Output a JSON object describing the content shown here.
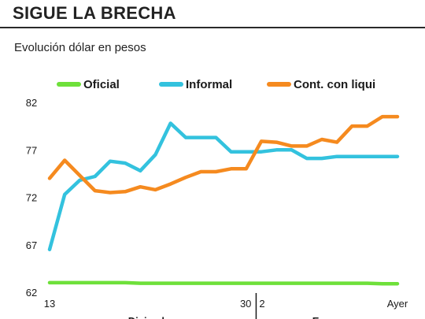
{
  "header": {
    "title": "SIGUE LA BRECHA",
    "subtitle": "Evolución dólar en pesos"
  },
  "chart_data": {
    "type": "line",
    "title": "SIGUE LA BRECHA",
    "subtitle": "Evolución dólar en pesos",
    "xlabel": "",
    "ylabel": "",
    "ylim": [
      62,
      82
    ],
    "yticks": [
      62,
      67,
      72,
      77,
      82
    ],
    "x_tick_labels": [
      {
        "index": 0,
        "label": "13"
      },
      {
        "index": 13,
        "label": "30"
      },
      {
        "index": 14,
        "label": "2"
      },
      {
        "index": 23,
        "label": "Ayer"
      }
    ],
    "month_labels": [
      "Diciembre",
      "Enero"
    ],
    "month_divider_after_index": 13,
    "legend_position": "top",
    "grid": false,
    "series": [
      {
        "name": "Oficial",
        "color": "#6ee03a",
        "values": [
          63.0,
          63.0,
          63.0,
          63.0,
          63.0,
          63.0,
          62.95,
          62.95,
          62.95,
          62.95,
          62.95,
          62.95,
          62.95,
          62.95,
          62.95,
          62.95,
          62.95,
          62.95,
          62.95,
          62.95,
          62.95,
          62.95,
          62.9,
          62.9
        ]
      },
      {
        "name": "Informal",
        "color": "#33c2de",
        "values": [
          66.5,
          72.3,
          73.8,
          74.2,
          75.8,
          75.6,
          74.8,
          76.5,
          79.8,
          78.3,
          78.3,
          78.3,
          76.8,
          76.8,
          76.8,
          77.0,
          77.0,
          76.1,
          76.1,
          76.3,
          76.3,
          76.3,
          76.3,
          76.3
        ]
      },
      {
        "name": "Cont. con liqui",
        "color": "#f58a1f",
        "values": [
          74.0,
          75.9,
          74.3,
          72.7,
          72.5,
          72.6,
          73.1,
          72.8,
          73.4,
          74.1,
          74.7,
          74.7,
          75.0,
          75.0,
          77.9,
          77.8,
          77.4,
          77.4,
          78.1,
          77.8,
          79.5,
          79.5,
          80.5,
          80.5
        ]
      }
    ]
  }
}
